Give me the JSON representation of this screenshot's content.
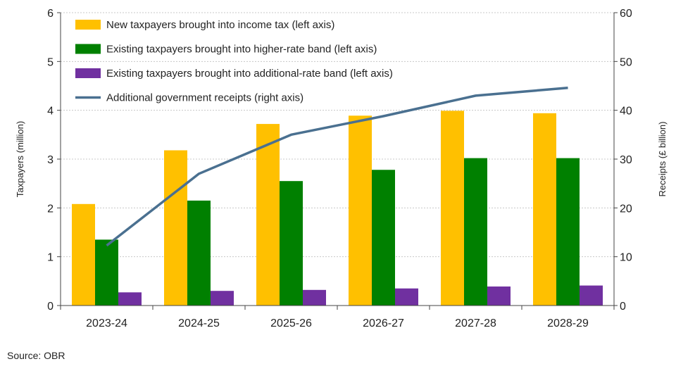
{
  "chart_data": {
    "type": "bar",
    "categories": [
      "2023-24",
      "2024-25",
      "2025-26",
      "2026-27",
      "2027-28",
      "2028-29"
    ],
    "series": [
      {
        "name": "New taxpayers brought into income tax (left axis)",
        "type": "bar",
        "axis": "left",
        "color": "#FFC000",
        "values": [
          2.08,
          3.18,
          3.72,
          3.89,
          3.99,
          3.94
        ]
      },
      {
        "name": "Existing taxpayers brought into higher-rate band (left axis)",
        "type": "bar",
        "axis": "left",
        "color": "#008000",
        "values": [
          1.35,
          2.15,
          2.55,
          2.78,
          3.02,
          3.02
        ]
      },
      {
        "name": "Existing taxpayers brought into additional-rate band (left axis)",
        "type": "bar",
        "axis": "left",
        "color": "#7030A0",
        "values": [
          0.27,
          0.3,
          0.32,
          0.35,
          0.39,
          0.41
        ]
      },
      {
        "name": "Additional government receipts (right axis)",
        "type": "line",
        "axis": "right",
        "color": "#4A7090",
        "values": [
          12.3,
          27.0,
          35.0,
          38.8,
          43.0,
          44.6
        ]
      }
    ],
    "ylabel_left": "Taxpayers (million)",
    "ylabel_right": "Receipts (£ billion)",
    "ylim_left": [
      0,
      6
    ],
    "ylim_right": [
      0,
      60
    ],
    "yticks_left": [
      "0",
      "1",
      "2",
      "3",
      "4",
      "5",
      "6"
    ],
    "yticks_right": [
      "0",
      "10",
      "20",
      "30",
      "40",
      "50",
      "60"
    ],
    "grid": true,
    "legend_position": "top-left"
  },
  "source": "Source: OBR"
}
